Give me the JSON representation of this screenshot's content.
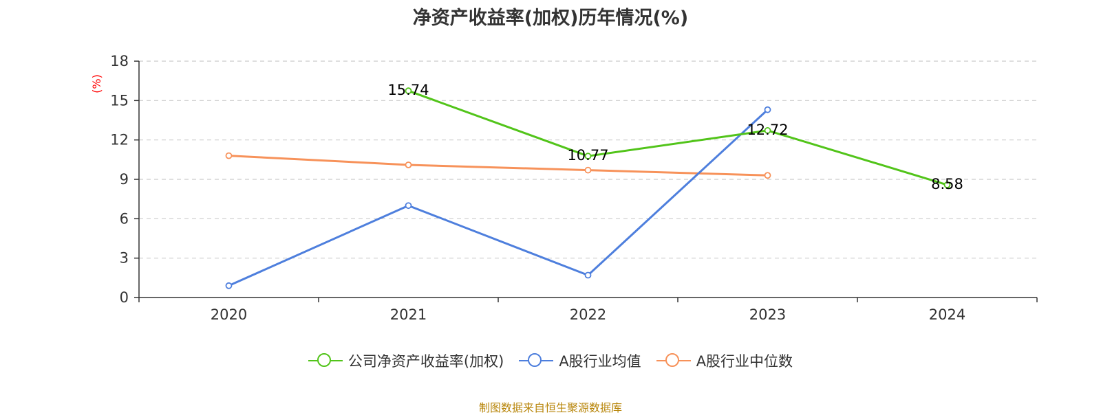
{
  "chart_data": {
    "type": "line",
    "title": "净资产收益率(加权)历年情况(%)",
    "ylabel": "(%)",
    "xlabel": "",
    "categories": [
      "2020",
      "2021",
      "2022",
      "2023",
      "2024"
    ],
    "ylim": [
      0,
      18
    ],
    "yticks": [
      0,
      3,
      6,
      9,
      12,
      15,
      18
    ],
    "grid": true,
    "legend_position": "bottom",
    "series": [
      {
        "name": "公司净资产收益率(加权)",
        "color": "#52c41a",
        "values": [
          null,
          15.74,
          10.77,
          12.72,
          8.58
        ],
        "labels": [
          "",
          "15.74",
          "10.77",
          "12.72",
          "8.58"
        ]
      },
      {
        "name": "A股行业均值",
        "color": "#4e7fdd",
        "values": [
          0.9,
          7.0,
          1.7,
          14.3,
          null
        ]
      },
      {
        "name": "A股行业中位数",
        "color": "#f7925a",
        "values": [
          10.8,
          10.1,
          9.7,
          9.3,
          null
        ]
      }
    ]
  },
  "colors": {
    "title": "#333333",
    "axis": "#333333",
    "grid": "#cccccc",
    "ylabel": "#ff0000",
    "source": "#b8860b"
  },
  "source": "制图数据来自恒生聚源数据库"
}
